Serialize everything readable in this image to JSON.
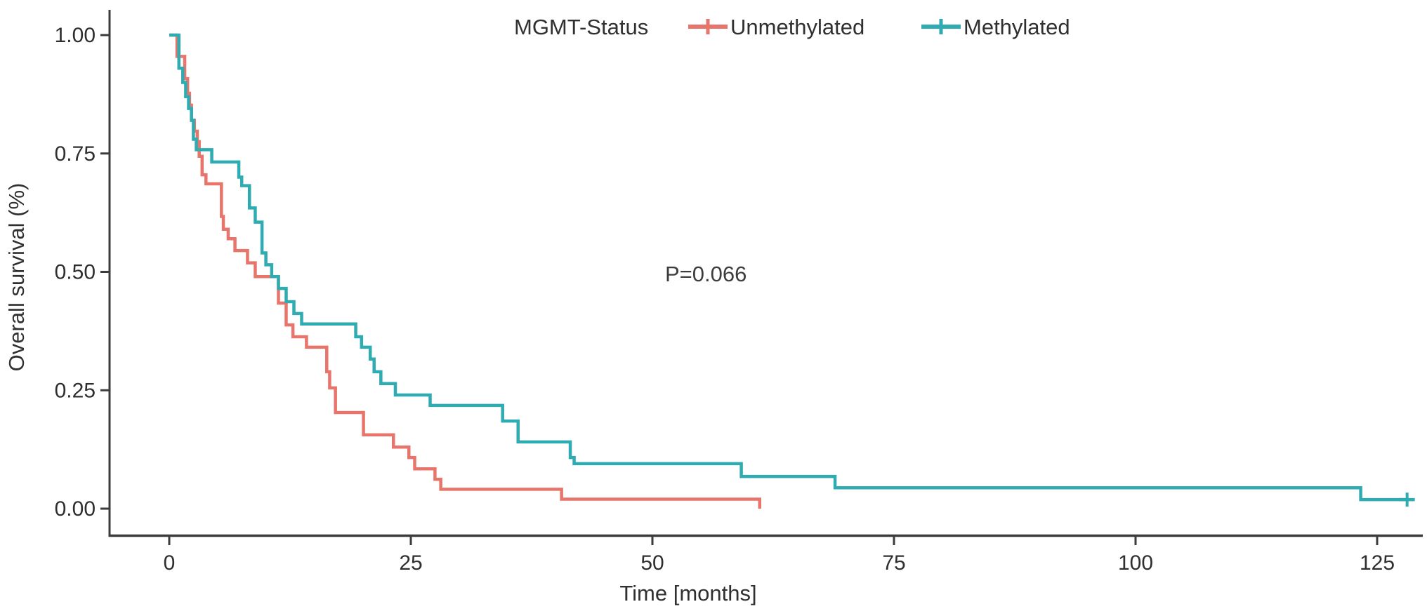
{
  "chart_data": {
    "type": "line",
    "subtype": "kaplan-meier-step",
    "title": "",
    "xlabel": "Time [months]",
    "ylabel": "Overall survival (%)",
    "xlim": [
      0,
      130
    ],
    "ylim": [
      0,
      1
    ],
    "grid": false,
    "x_ticks": [
      0,
      25,
      50,
      75,
      100,
      125
    ],
    "y_ticks": [
      "0.00",
      "0.25",
      "0.50",
      "0.75",
      "1.00"
    ],
    "annotation": {
      "text": "P=0.066",
      "x": 52,
      "y": 0.5
    },
    "p_value": 0.066,
    "legend": {
      "position": "top",
      "title": "MGMT-Status",
      "items": [
        {
          "label": "Unmethylated",
          "color": "#E8756B"
        },
        {
          "label": "Methylated",
          "color": "#2EACB2"
        }
      ]
    },
    "series": [
      {
        "name": "Unmethylated",
        "color": "#E8756B",
        "end": "event",
        "censor_at_end": false,
        "points": [
          [
            0,
            1.0
          ],
          [
            0.8,
            0.955
          ],
          [
            1.6,
            0.908
          ],
          [
            1.9,
            0.877
          ],
          [
            2.1,
            0.852
          ],
          [
            2.3,
            0.82
          ],
          [
            2.6,
            0.797
          ],
          [
            2.9,
            0.775
          ],
          [
            3.1,
            0.744
          ],
          [
            3.4,
            0.705
          ],
          [
            3.8,
            0.686
          ],
          [
            5.4,
            0.617
          ],
          [
            5.6,
            0.59
          ],
          [
            6.1,
            0.57
          ],
          [
            6.8,
            0.545
          ],
          [
            8.1,
            0.519
          ],
          [
            8.9,
            0.49
          ],
          [
            11.3,
            0.434
          ],
          [
            12.1,
            0.388
          ],
          [
            12.8,
            0.363
          ],
          [
            14.2,
            0.341
          ],
          [
            16.3,
            0.289
          ],
          [
            16.6,
            0.255
          ],
          [
            17.2,
            0.203
          ],
          [
            20.1,
            0.156
          ],
          [
            23.2,
            0.13
          ],
          [
            24.8,
            0.108
          ],
          [
            25.4,
            0.084
          ],
          [
            27.5,
            0.062
          ],
          [
            28.1,
            0.041
          ],
          [
            40.6,
            0.02
          ],
          [
            61.1,
            0.0
          ]
        ]
      },
      {
        "name": "Methylated",
        "color": "#2EACB2",
        "end": "censored",
        "censor_at_end": true,
        "points": [
          [
            0,
            1.0
          ],
          [
            1.0,
            0.93
          ],
          [
            1.4,
            0.9
          ],
          [
            1.7,
            0.87
          ],
          [
            2.0,
            0.845
          ],
          [
            2.3,
            0.82
          ],
          [
            2.5,
            0.78
          ],
          [
            2.8,
            0.758
          ],
          [
            4.4,
            0.732
          ],
          [
            7.2,
            0.7
          ],
          [
            7.5,
            0.682
          ],
          [
            8.3,
            0.635
          ],
          [
            8.9,
            0.605
          ],
          [
            9.6,
            0.54
          ],
          [
            10.0,
            0.515
          ],
          [
            10.6,
            0.49
          ],
          [
            11.3,
            0.465
          ],
          [
            12.1,
            0.437
          ],
          [
            12.9,
            0.412
          ],
          [
            13.7,
            0.39
          ],
          [
            19.3,
            0.363
          ],
          [
            19.9,
            0.341
          ],
          [
            20.8,
            0.316
          ],
          [
            21.2,
            0.289
          ],
          [
            21.9,
            0.264
          ],
          [
            23.4,
            0.24
          ],
          [
            27.0,
            0.218
          ],
          [
            34.5,
            0.185
          ],
          [
            36.1,
            0.141
          ],
          [
            41.5,
            0.108
          ],
          [
            41.9,
            0.095
          ],
          [
            59.2,
            0.068
          ],
          [
            68.9,
            0.044
          ],
          [
            123.3,
            0.019
          ],
          [
            128.1,
            0.019
          ]
        ]
      }
    ]
  }
}
